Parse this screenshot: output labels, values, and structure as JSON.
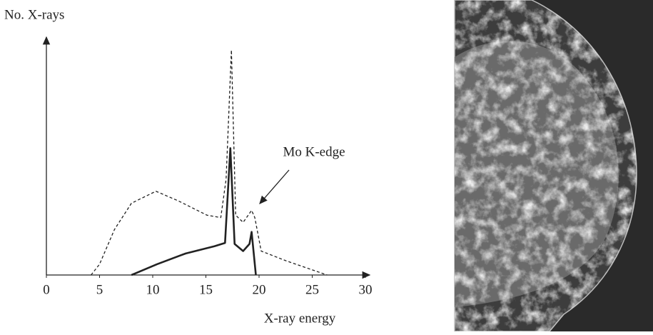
{
  "chart_data": {
    "type": "line",
    "y_label": "No. X-rays",
    "x_label": "X-ray energy",
    "annotation": "Mo K-edge",
    "xlim": [
      0,
      30
    ],
    "xticks": [
      0,
      5,
      10,
      15,
      20,
      25,
      30
    ],
    "ylim": [
      0,
      100
    ],
    "series": [
      {
        "color": "#222222",
        "dashed": true,
        "x": [
          4.2,
          5,
          6.4,
          8,
          10.3,
          12.4,
          15.1,
          16.4,
          16.9,
          17.4,
          17.8,
          18.5,
          19.3,
          19.6,
          20.2,
          22.5,
          26.4
        ],
        "values": [
          0,
          4.5,
          19,
          30,
          35,
          31,
          25,
          24,
          40,
          94,
          25,
          22,
          27,
          24,
          10,
          6,
          0
        ]
      },
      {
        "color": "#222222",
        "dashed": false,
        "x": [
          8,
          10.4,
          13.1,
          15.8,
          16.8,
          17.3,
          17.7,
          18.5,
          19.1,
          19.3,
          19.7
        ],
        "values": [
          0,
          4.5,
          9,
          12,
          13.4,
          53,
          13,
          10,
          13,
          18,
          0
        ]
      }
    ]
  }
}
